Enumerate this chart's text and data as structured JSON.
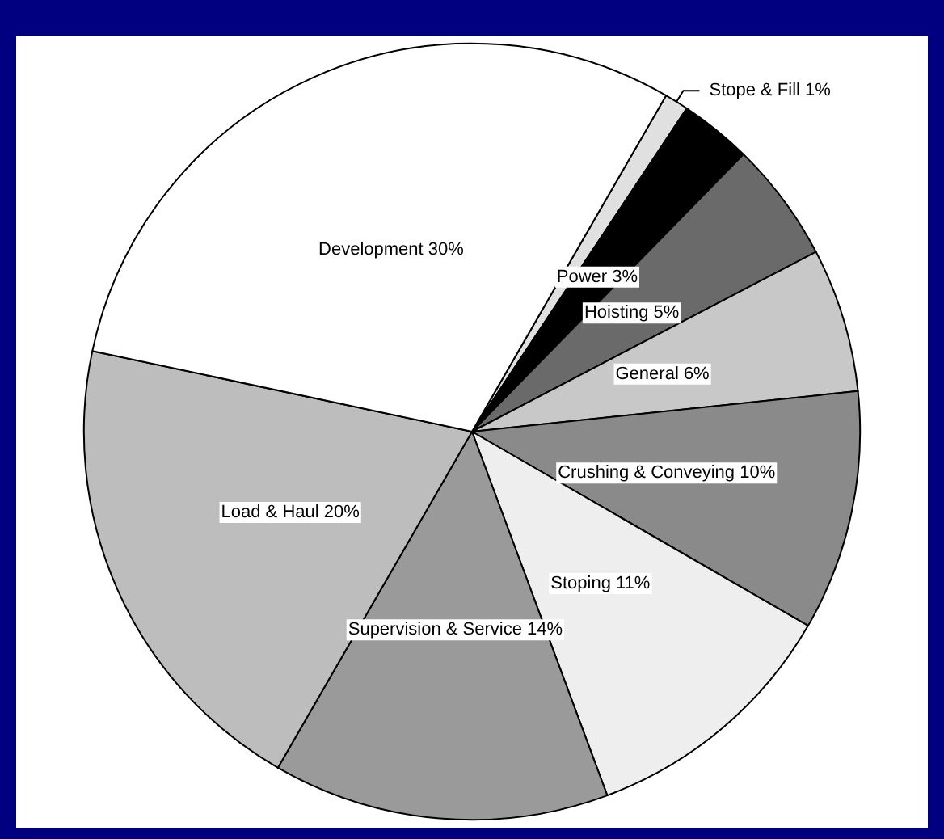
{
  "chart_data": {
    "type": "pie",
    "categories": [
      "Stope & Fill",
      "Power",
      "Hoisting",
      "General",
      "Crushing & Conveying",
      "Stoping",
      "Supervision & Service",
      "Load & Haul",
      "Development"
    ],
    "values": [
      1,
      3,
      5,
      6,
      10,
      11,
      14,
      20,
      30
    ],
    "value_labels": [
      "1%",
      "3%",
      "5%",
      "6%",
      "10%",
      "11%",
      "14%",
      "20%",
      "30%"
    ],
    "colors": [
      "#e0e0e0",
      "#000000",
      "#6a6a6a",
      "#c8c8c8",
      "#8a8a8a",
      "#eeeeee",
      "#9a9a9a",
      "#bdbdbd",
      "#ffffff"
    ],
    "legend": false
  }
}
